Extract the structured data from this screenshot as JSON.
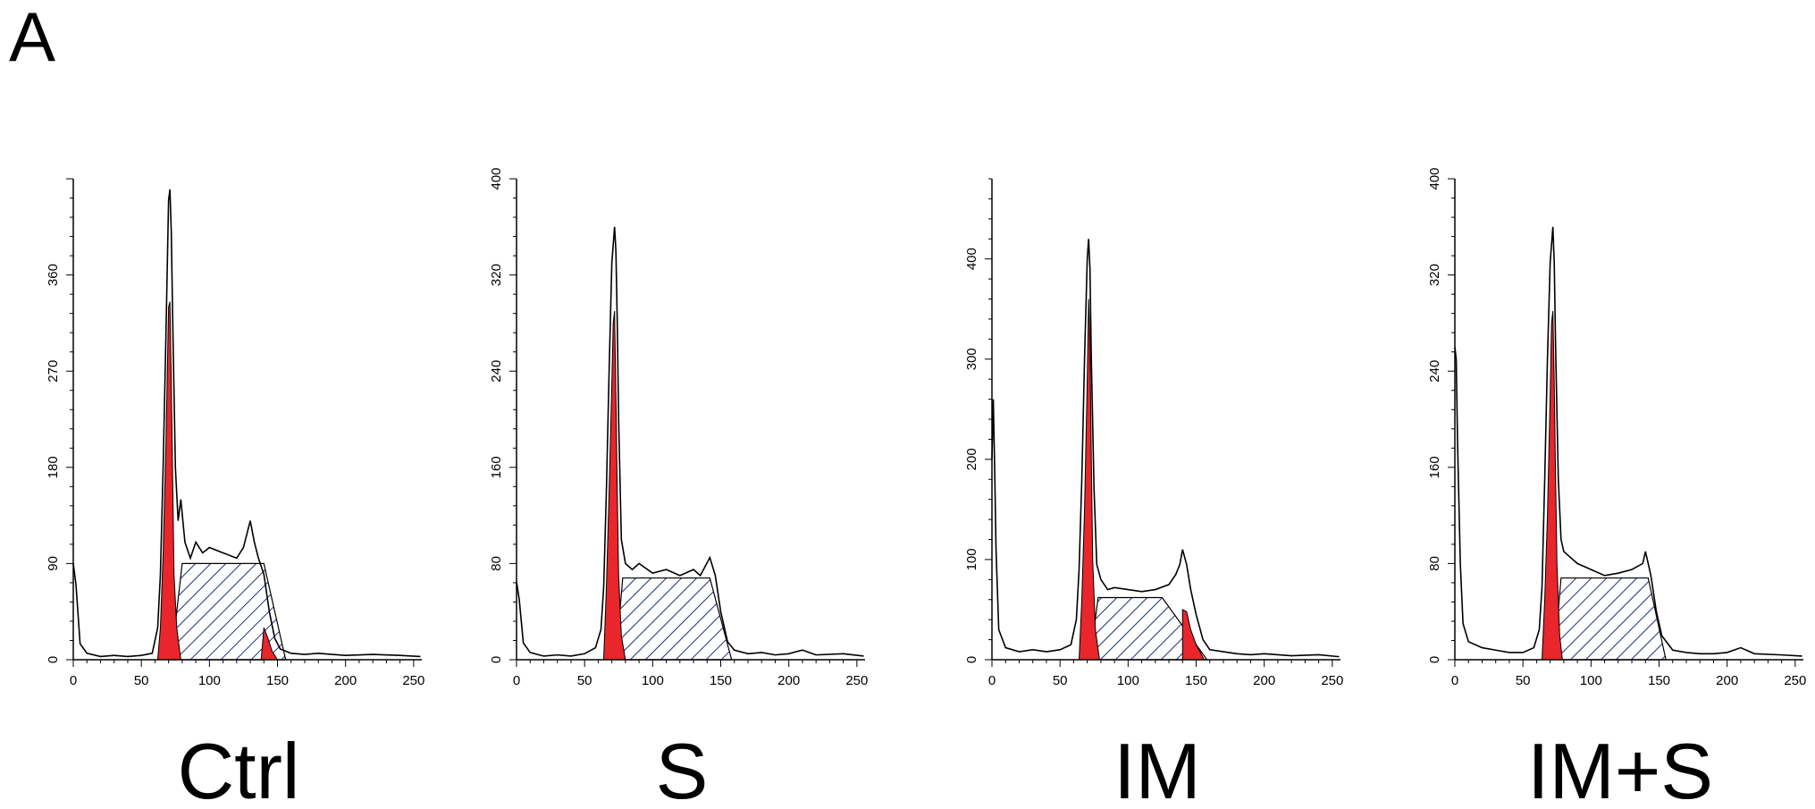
{
  "panel_label": "A",
  "colors": {
    "g1_fill": "#e8262b",
    "s_hatch": "#1f2f7a",
    "line": "#000000",
    "background": "#ffffff"
  },
  "chart_data": [
    {
      "type": "area",
      "condition": "Ctrl",
      "x_ticks": [
        0,
        50,
        100,
        150,
        200,
        250
      ],
      "y_ticks": [
        0,
        90,
        180,
        270,
        360
      ],
      "xlim": [
        0,
        256
      ],
      "ylim": [
        0,
        450
      ],
      "histogram": [
        [
          0,
          90
        ],
        [
          2,
          70
        ],
        [
          5,
          15
        ],
        [
          10,
          6
        ],
        [
          20,
          3
        ],
        [
          30,
          4
        ],
        [
          40,
          3
        ],
        [
          50,
          4
        ],
        [
          58,
          6
        ],
        [
          62,
          30
        ],
        [
          64,
          80
        ],
        [
          66,
          180
        ],
        [
          68,
          300
        ],
        [
          70,
          430
        ],
        [
          71,
          440
        ],
        [
          72,
          400
        ],
        [
          73,
          320
        ],
        [
          75,
          180
        ],
        [
          77,
          130
        ],
        [
          79,
          150
        ],
        [
          82,
          110
        ],
        [
          86,
          95
        ],
        [
          90,
          110
        ],
        [
          95,
          100
        ],
        [
          100,
          105
        ],
        [
          110,
          100
        ],
        [
          120,
          95
        ],
        [
          125,
          105
        ],
        [
          130,
          130
        ],
        [
          133,
          110
        ],
        [
          136,
          95
        ],
        [
          140,
          80
        ],
        [
          144,
          45
        ],
        [
          148,
          20
        ],
        [
          152,
          10
        ],
        [
          160,
          6
        ],
        [
          170,
          5
        ],
        [
          180,
          6
        ],
        [
          190,
          5
        ],
        [
          200,
          4
        ],
        [
          220,
          5
        ],
        [
          240,
          4
        ],
        [
          255,
          3
        ]
      ],
      "g1_peak": [
        [
          62,
          0
        ],
        [
          64,
          30
        ],
        [
          66,
          100
        ],
        [
          68,
          200
        ],
        [
          70,
          330
        ],
        [
          71,
          335
        ],
        [
          72,
          260
        ],
        [
          73,
          170
        ],
        [
          74,
          80
        ],
        [
          76,
          30
        ],
        [
          79,
          0
        ]
      ],
      "s_phase": [
        [
          72,
          0
        ],
        [
          80,
          90
        ],
        [
          140,
          90
        ],
        [
          156,
          0
        ]
      ],
      "g2_peak": [
        [
          138,
          0
        ],
        [
          140,
          30
        ],
        [
          143,
          20
        ],
        [
          146,
          8
        ],
        [
          150,
          0
        ]
      ]
    },
    {
      "type": "area",
      "condition": "S",
      "x_ticks": [
        0,
        50,
        100,
        150,
        200,
        250
      ],
      "y_ticks": [
        0,
        80,
        160,
        240,
        320,
        400
      ],
      "xlim": [
        0,
        256
      ],
      "ylim": [
        0,
        400
      ],
      "histogram": [
        [
          0,
          65
        ],
        [
          2,
          50
        ],
        [
          5,
          14
        ],
        [
          10,
          6
        ],
        [
          20,
          3
        ],
        [
          30,
          4
        ],
        [
          40,
          3
        ],
        [
          50,
          5
        ],
        [
          58,
          10
        ],
        [
          62,
          25
        ],
        [
          64,
          60
        ],
        [
          66,
          140
        ],
        [
          68,
          240
        ],
        [
          70,
          330
        ],
        [
          72,
          360
        ],
        [
          73,
          340
        ],
        [
          74,
          280
        ],
        [
          75,
          200
        ],
        [
          77,
          100
        ],
        [
          80,
          80
        ],
        [
          85,
          75
        ],
        [
          90,
          80
        ],
        [
          100,
          72
        ],
        [
          110,
          75
        ],
        [
          120,
          70
        ],
        [
          130,
          75
        ],
        [
          135,
          70
        ],
        [
          142,
          85
        ],
        [
          146,
          70
        ],
        [
          150,
          40
        ],
        [
          155,
          15
        ],
        [
          160,
          8
        ],
        [
          170,
          5
        ],
        [
          180,
          6
        ],
        [
          190,
          4
        ],
        [
          200,
          5
        ],
        [
          210,
          8
        ],
        [
          220,
          4
        ],
        [
          240,
          5
        ],
        [
          255,
          3
        ]
      ],
      "g1_peak": [
        [
          64,
          0
        ],
        [
          66,
          60
        ],
        [
          68,
          140
        ],
        [
          70,
          230
        ],
        [
          71,
          280
        ],
        [
          72,
          290
        ],
        [
          73,
          220
        ],
        [
          74,
          140
        ],
        [
          75,
          70
        ],
        [
          77,
          20
        ],
        [
          80,
          0
        ]
      ],
      "s_phase": [
        [
          73,
          0
        ],
        [
          78,
          68
        ],
        [
          142,
          68
        ],
        [
          158,
          0
        ]
      ],
      "g2_peak": []
    },
    {
      "type": "area",
      "condition": "IM",
      "x_ticks": [
        0,
        50,
        100,
        150,
        200,
        250
      ],
      "y_ticks": [
        0,
        100,
        200,
        300,
        400
      ],
      "xlim": [
        0,
        256
      ],
      "ylim": [
        0,
        480
      ],
      "histogram": [
        [
          0,
          200
        ],
        [
          1,
          260
        ],
        [
          2,
          190
        ],
        [
          3,
          110
        ],
        [
          5,
          30
        ],
        [
          10,
          12
        ],
        [
          20,
          8
        ],
        [
          30,
          10
        ],
        [
          40,
          8
        ],
        [
          50,
          10
        ],
        [
          58,
          15
        ],
        [
          62,
          40
        ],
        [
          64,
          90
        ],
        [
          66,
          180
        ],
        [
          68,
          300
        ],
        [
          70,
          400
        ],
        [
          71,
          420
        ],
        [
          72,
          390
        ],
        [
          73,
          300
        ],
        [
          75,
          170
        ],
        [
          77,
          95
        ],
        [
          80,
          80
        ],
        [
          85,
          70
        ],
        [
          90,
          72
        ],
        [
          100,
          70
        ],
        [
          110,
          68
        ],
        [
          120,
          70
        ],
        [
          130,
          75
        ],
        [
          135,
          85
        ],
        [
          138,
          95
        ],
        [
          140,
          110
        ],
        [
          143,
          95
        ],
        [
          146,
          70
        ],
        [
          150,
          45
        ],
        [
          155,
          20
        ],
        [
          160,
          10
        ],
        [
          170,
          8
        ],
        [
          180,
          6
        ],
        [
          190,
          5
        ],
        [
          200,
          6
        ],
        [
          220,
          4
        ],
        [
          240,
          5
        ],
        [
          255,
          3
        ]
      ],
      "g1_peak": [
        [
          64,
          0
        ],
        [
          66,
          60
        ],
        [
          68,
          150
        ],
        [
          70,
          280
        ],
        [
          71,
          360
        ],
        [
          72,
          320
        ],
        [
          73,
          200
        ],
        [
          74,
          100
        ],
        [
          76,
          30
        ],
        [
          79,
          0
        ]
      ],
      "s_phase": [
        [
          72,
          0
        ],
        [
          78,
          62
        ],
        [
          125,
          62
        ],
        [
          158,
          0
        ]
      ],
      "g2_peak": [
        [
          140,
          50
        ],
        [
          143,
          48
        ],
        [
          146,
          30
        ],
        [
          150,
          15
        ],
        [
          156,
          0
        ]
      ]
    },
    {
      "type": "area",
      "condition": "IM+S",
      "x_ticks": [
        0,
        50,
        100,
        150,
        200,
        250
      ],
      "y_ticks": [
        0,
        80,
        160,
        240,
        320,
        400
      ],
      "xlim": [
        0,
        256
      ],
      "ylim": [
        0,
        400
      ],
      "histogram": [
        [
          0,
          260
        ],
        [
          1,
          250
        ],
        [
          2,
          180
        ],
        [
          4,
          80
        ],
        [
          6,
          30
        ],
        [
          10,
          15
        ],
        [
          20,
          10
        ],
        [
          30,
          8
        ],
        [
          40,
          6
        ],
        [
          50,
          6
        ],
        [
          58,
          10
        ],
        [
          62,
          25
        ],
        [
          64,
          60
        ],
        [
          66,
          150
        ],
        [
          68,
          250
        ],
        [
          70,
          330
        ],
        [
          72,
          360
        ],
        [
          73,
          330
        ],
        [
          74,
          260
        ],
        [
          76,
          150
        ],
        [
          78,
          100
        ],
        [
          80,
          90
        ],
        [
          85,
          85
        ],
        [
          90,
          80
        ],
        [
          100,
          75
        ],
        [
          110,
          70
        ],
        [
          120,
          72
        ],
        [
          130,
          75
        ],
        [
          138,
          80
        ],
        [
          140,
          90
        ],
        [
          144,
          70
        ],
        [
          148,
          40
        ],
        [
          152,
          20
        ],
        [
          160,
          8
        ],
        [
          170,
          6
        ],
        [
          180,
          5
        ],
        [
          190,
          5
        ],
        [
          200,
          6
        ],
        [
          210,
          10
        ],
        [
          220,
          5
        ],
        [
          240,
          4
        ],
        [
          255,
          3
        ]
      ],
      "g1_peak": [
        [
          64,
          0
        ],
        [
          66,
          50
        ],
        [
          68,
          120
        ],
        [
          70,
          220
        ],
        [
          71,
          280
        ],
        [
          72,
          290
        ],
        [
          73,
          230
        ],
        [
          74,
          150
        ],
        [
          75,
          80
        ],
        [
          77,
          20
        ],
        [
          79,
          0
        ]
      ],
      "s_phase": [
        [
          73,
          0
        ],
        [
          78,
          68
        ],
        [
          142,
          68
        ],
        [
          155,
          0
        ]
      ],
      "g2_peak": []
    }
  ]
}
